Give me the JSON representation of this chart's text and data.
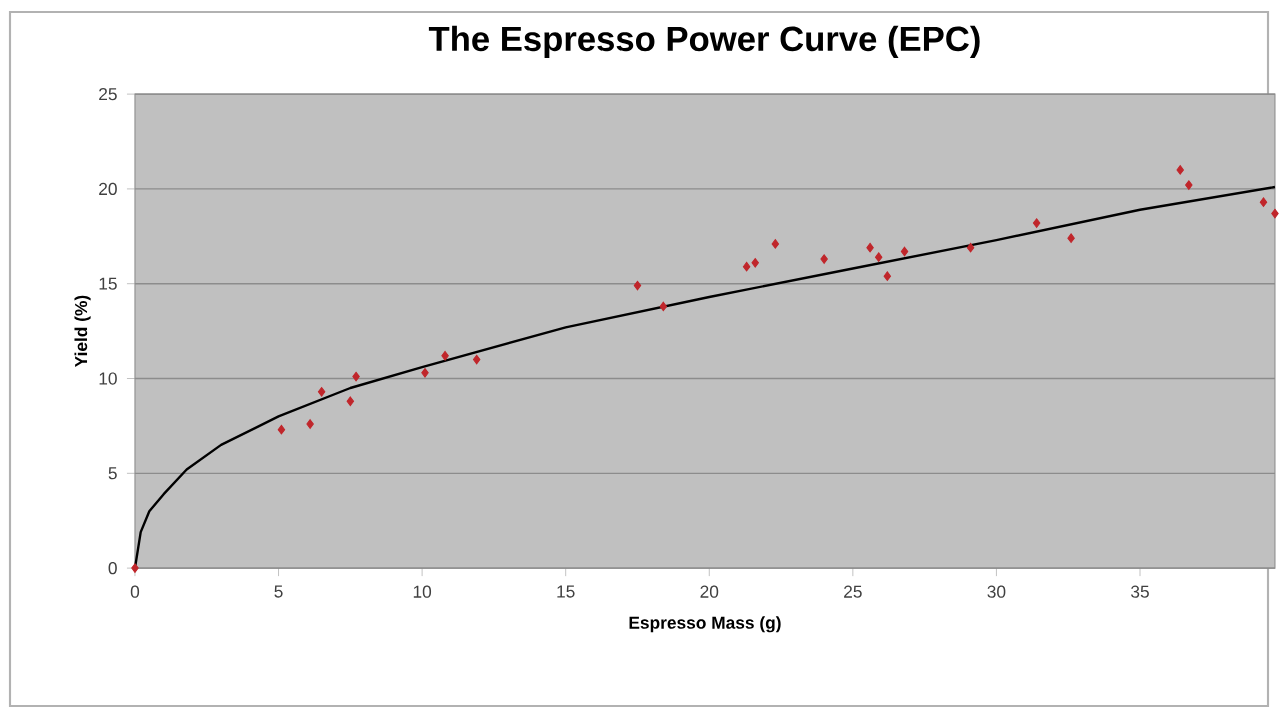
{
  "chart_data": {
    "type": "scatter",
    "title": "The Espresso Power Curve (EPC)",
    "xlabel": "Espresso Mass (g)",
    "ylabel": "Yield (%)",
    "xlim": [
      0,
      39.7
    ],
    "xticks": [
      0,
      5,
      10,
      15,
      20,
      25,
      30,
      35
    ],
    "ylim": [
      0,
      25
    ],
    "yticks": [
      0,
      5,
      10,
      15,
      20,
      25
    ],
    "grid": "y",
    "series": [
      {
        "color": "#c0262b",
        "marker": "diamond",
        "x": [
          0,
          5.1,
          6.1,
          6.5,
          7.5,
          7.7,
          10.1,
          10.8,
          11.9,
          17.5,
          18.4,
          21.3,
          21.6,
          22.3,
          24.0,
          25.6,
          25.9,
          26.2,
          26.8,
          29.1,
          31.4,
          32.6,
          36.4,
          36.7,
          39.3,
          39.7
        ],
        "values": [
          0,
          7.3,
          7.6,
          9.3,
          8.8,
          10.1,
          10.3,
          11.2,
          11.0,
          14.9,
          13.8,
          15.9,
          16.1,
          17.1,
          16.3,
          16.9,
          16.4,
          15.4,
          16.7,
          16.9,
          18.2,
          17.4,
          21.0,
          20.2,
          19.3,
          18.7
        ]
      },
      {
        "type": "line",
        "color": "#000000",
        "marker": "none",
        "line_style": "solid",
        "x": [
          0,
          0.2,
          0.5,
          1,
          1.8,
          3,
          5,
          7.5,
          10,
          15,
          20,
          25,
          30,
          35,
          39.7
        ],
        "values": [
          0,
          1.9,
          3.0,
          3.9,
          5.2,
          6.5,
          8.0,
          9.5,
          10.6,
          12.7,
          14.3,
          15.8,
          17.3,
          18.9,
          20.1
        ]
      }
    ]
  }
}
